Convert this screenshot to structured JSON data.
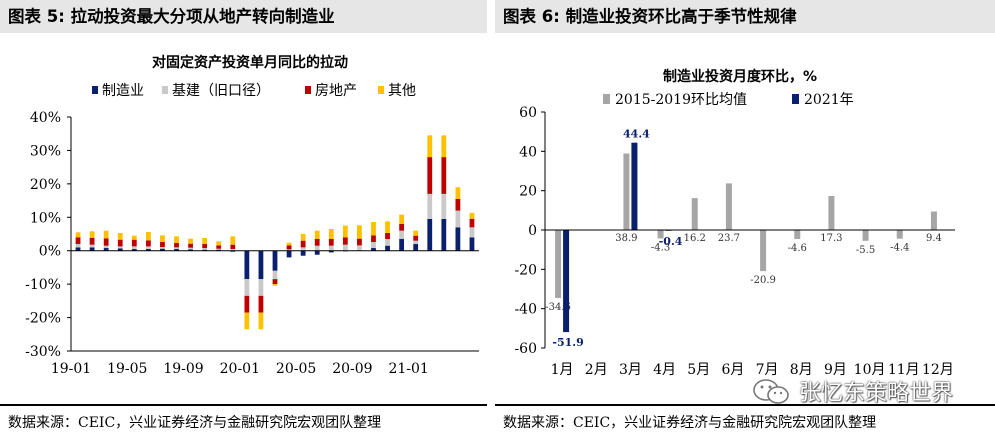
{
  "left": {
    "header": "图表 5:  拉动投资最大分项从地产转向制造业",
    "source": "数据来源：CEIC，兴业证券经济与金融研究院宏观团队整理"
  },
  "right": {
    "header": "图表 6:  制造业投资环比高于季节性规律",
    "source": "数据来源：CEIC，兴业证券经济与金融研究院宏观团队整理"
  },
  "watermark": {
    "text": "张忆东策略世界",
    "icon": "wechat-icon"
  },
  "chart_data": [
    {
      "type": "bar",
      "stacked": true,
      "title": "对固定资产投资单月同比的拉动",
      "ylim": [
        -30,
        40
      ],
      "yticks": [
        "-30%",
        "-20%",
        "-10%",
        "0%",
        "10%",
        "20%",
        "30%",
        "40%"
      ],
      "ytick_values": [
        -30,
        -20,
        -10,
        0,
        10,
        20,
        30,
        40
      ],
      "xtick_labels": [
        "19-01",
        "19-05",
        "19-09",
        "20-01",
        "20-05",
        "20-09",
        "21-01"
      ],
      "xtick_index": [
        0,
        4,
        8,
        12,
        16,
        20,
        24
      ],
      "colors": {
        "制造业": "#0a1f6e",
        "基建(旧口径)": "#c9c9c9",
        "房地产": "#c00000",
        "其他": "#ffc000"
      },
      "legend": [
        "制造业",
        "基建（旧口径）",
        "房地产",
        "其他"
      ],
      "series": [
        {
          "name": "制造业",
          "values": [
            1.0,
            1.0,
            0.8,
            0.7,
            0.5,
            0.5,
            0.6,
            0.5,
            0.4,
            0.3,
            0.3,
            -0.3,
            -8.5,
            -8.5,
            -6.0,
            -2.0,
            -1.5,
            -1.2,
            -0.5,
            -0.2,
            0.1,
            0.8,
            1.5,
            3.5,
            2.0,
            9.5,
            9.5,
            7.0,
            4.0
          ]
        },
        {
          "name": "基建",
          "values": [
            1.0,
            0.8,
            0.7,
            0.6,
            0.8,
            0.8,
            0.5,
            0.5,
            0.5,
            0.5,
            0.3,
            0.5,
            -5.0,
            -5.0,
            -2.5,
            0.4,
            1.0,
            1.5,
            1.5,
            1.8,
            1.5,
            1.8,
            2.0,
            2.5,
            1.0,
            7.5,
            7.5,
            5.0,
            3.0
          ]
        },
        {
          "name": "房地产",
          "values": [
            2.0,
            2.0,
            2.2,
            2.0,
            2.0,
            1.8,
            1.5,
            1.3,
            1.2,
            1.2,
            1.0,
            1.3,
            -5.0,
            -5.0,
            -1.5,
            1.2,
            2.0,
            2.0,
            2.0,
            2.2,
            2.0,
            2.0,
            1.8,
            2.0,
            1.5,
            11.0,
            11.0,
            3.5,
            2.5
          ]
        },
        {
          "name": "其他",
          "values": [
            1.5,
            2.0,
            2.3,
            2.0,
            1.2,
            2.5,
            2.0,
            2.0,
            1.5,
            1.8,
            1.2,
            2.5,
            -5.0,
            -5.0,
            -0.5,
            0.8,
            2.0,
            2.5,
            3.0,
            3.5,
            4.0,
            4.0,
            3.5,
            2.8,
            1.5,
            6.5,
            6.5,
            3.5,
            1.8
          ]
        }
      ]
    },
    {
      "type": "bar",
      "title": "制造业投资月度环比，%",
      "ylim": [
        -60,
        60
      ],
      "yticks": [
        "-60",
        "-40",
        "-20",
        "0",
        "20",
        "40",
        "60"
      ],
      "ytick_values": [
        -60,
        -40,
        -20,
        0,
        20,
        40,
        60
      ],
      "categories": [
        "1月",
        "2月",
        "3月",
        "4月",
        "5月",
        "6月",
        "7月",
        "8月",
        "9月",
        "10月",
        "11月",
        "12月"
      ],
      "legend": [
        "2015-2019环比均值",
        "2021年"
      ],
      "colors": {
        "avg": "#a6a6a6",
        "y2021": "#0a1f6e"
      },
      "series": [
        {
          "name": "2015-2019环比均值",
          "values": [
            -34.6,
            null,
            38.9,
            -4.3,
            16.2,
            23.7,
            -20.9,
            -4.6,
            17.3,
            -5.5,
            -4.4,
            9.4
          ],
          "labels": [
            "-34.6",
            "",
            "38.9",
            "-4.3",
            "16.2",
            "23.7",
            "-20.9",
            "-4.6",
            "17.3",
            "-5.5",
            "-4.4",
            "9.4"
          ]
        },
        {
          "name": "2021年",
          "values": [
            -51.9,
            null,
            44.4,
            -0.4,
            null,
            null,
            null,
            null,
            null,
            null,
            null,
            null
          ],
          "labels": [
            "-51.9",
            "",
            "44.4",
            "-0.4",
            "",
            "",
            "",
            "",
            "",
            "",
            "",
            ""
          ]
        }
      ]
    }
  ]
}
